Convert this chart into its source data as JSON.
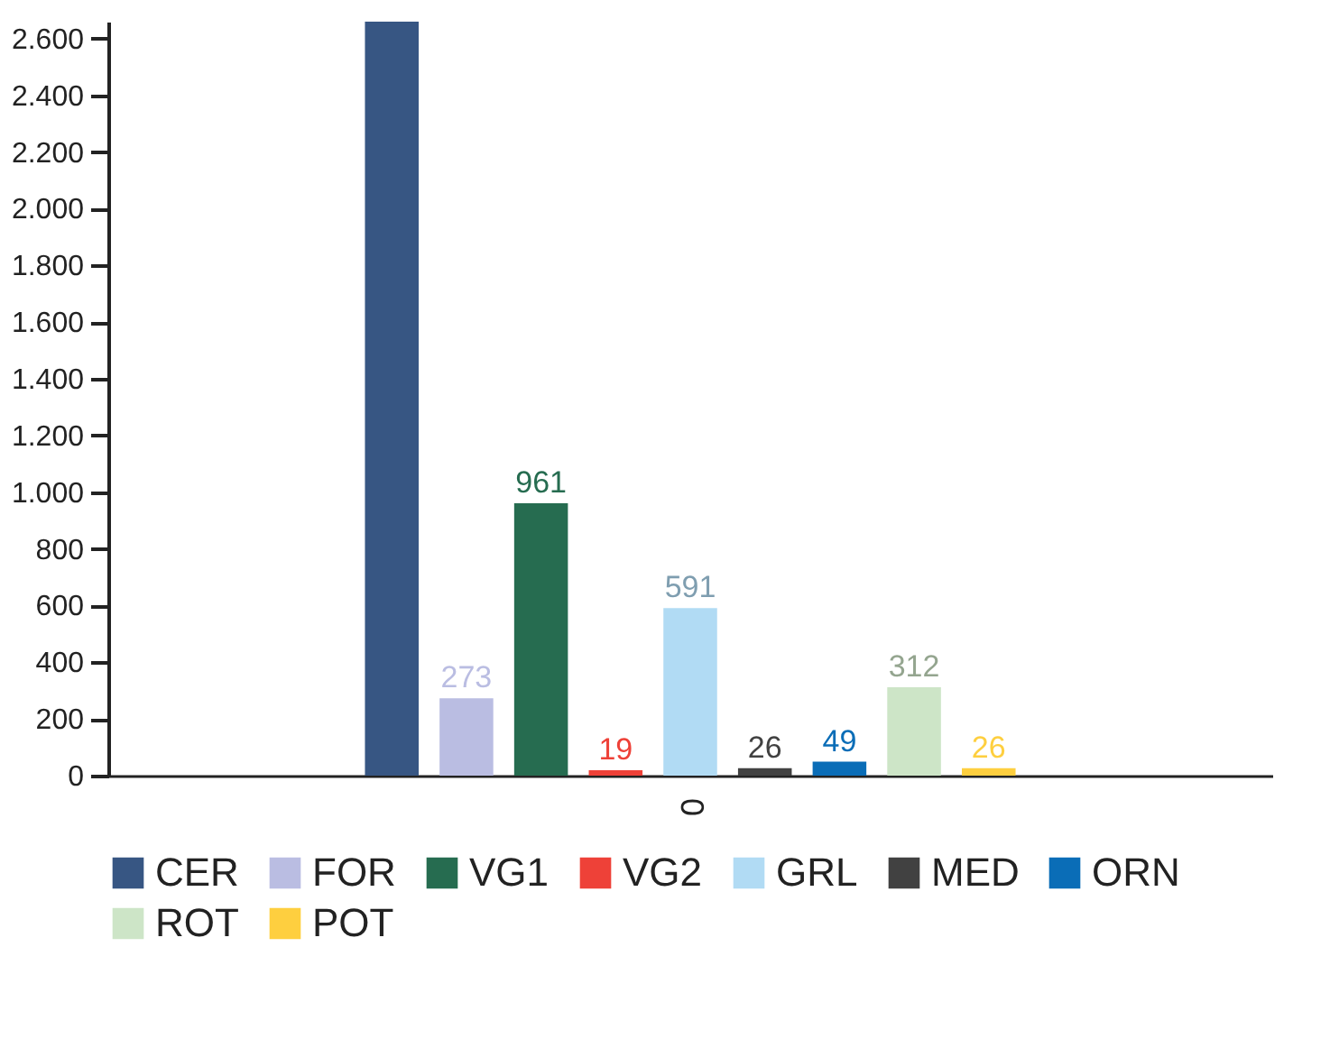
{
  "chart_data": {
    "type": "bar",
    "categories": [
      "0"
    ],
    "series": [
      {
        "name": "CER",
        "color": "#375683",
        "values": [
          2660
        ],
        "value_labels": [
          null
        ]
      },
      {
        "name": "FOR",
        "color": "#babde2",
        "values": [
          273
        ],
        "value_labels": [
          "273"
        ]
      },
      {
        "name": "VG1",
        "color": "#266c50",
        "values": [
          961
        ],
        "value_labels": [
          "961"
        ]
      },
      {
        "name": "VG2",
        "color": "#ee4138",
        "values": [
          19
        ],
        "value_labels": [
          "19"
        ]
      },
      {
        "name": "GRL",
        "color": "#b1dbf4",
        "values": [
          591
        ],
        "value_labels": [
          "591"
        ]
      },
      {
        "name": "MED",
        "color": "#414141",
        "values": [
          26
        ],
        "value_labels": [
          "26"
        ]
      },
      {
        "name": "ORN",
        "color": "#0a6db7",
        "values": [
          49
        ],
        "value_labels": [
          "49"
        ]
      },
      {
        "name": "ROT",
        "color": "#cde5c7",
        "values": [
          312
        ],
        "value_labels": [
          "312"
        ]
      },
      {
        "name": "POT",
        "color": "#fecf3f",
        "values": [
          26
        ],
        "value_labels": [
          "26"
        ]
      }
    ],
    "ylim": [
      0,
      2660
    ],
    "yticks": [
      0,
      200,
      400,
      600,
      800,
      {
        "value": 1000,
        "label": "1.000"
      },
      {
        "value": 1200,
        "label": "1.200"
      },
      {
        "value": 1400,
        "label": "1.400"
      },
      {
        "value": 1600,
        "label": "1.600"
      },
      {
        "value": 1800,
        "label": "1.800"
      },
      {
        "value": 2000,
        "label": "2.000"
      },
      {
        "value": 2200,
        "label": "2.200"
      },
      {
        "value": 2400,
        "label": "2.400"
      },
      {
        "value": 2600,
        "label": "2.600"
      }
    ],
    "grid": false,
    "legend": "bottom"
  }
}
